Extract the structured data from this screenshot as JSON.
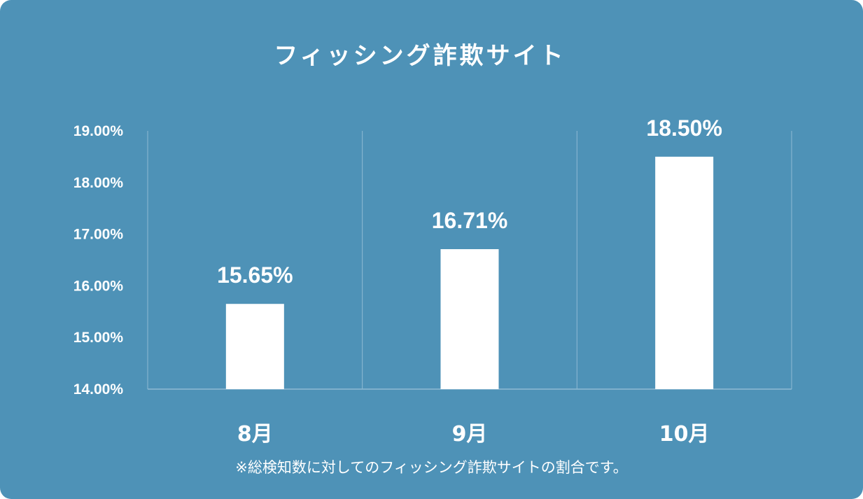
{
  "chart_data": {
    "type": "bar",
    "title": "フィッシング詐欺サイト",
    "categories": [
      "8月",
      "9月",
      "10月"
    ],
    "values": [
      15.65,
      16.71,
      18.5
    ],
    "data_labels": [
      "15.65%",
      "16.71%",
      "18.50%"
    ],
    "ylim": [
      14,
      19
    ],
    "yticks": [
      "14.00%",
      "15.00%",
      "16.00%",
      "17.00%",
      "18.00%",
      "19.00%"
    ],
    "grid": "vertical category separators",
    "legend": "none",
    "footnote": "※総検知数に対してのフィッシング詐欺サイトの割合です。"
  },
  "colors": {
    "background": "#4e92b7",
    "bar": "#ffffff",
    "gridline": "#8fbad3",
    "text": "#ffffff"
  }
}
